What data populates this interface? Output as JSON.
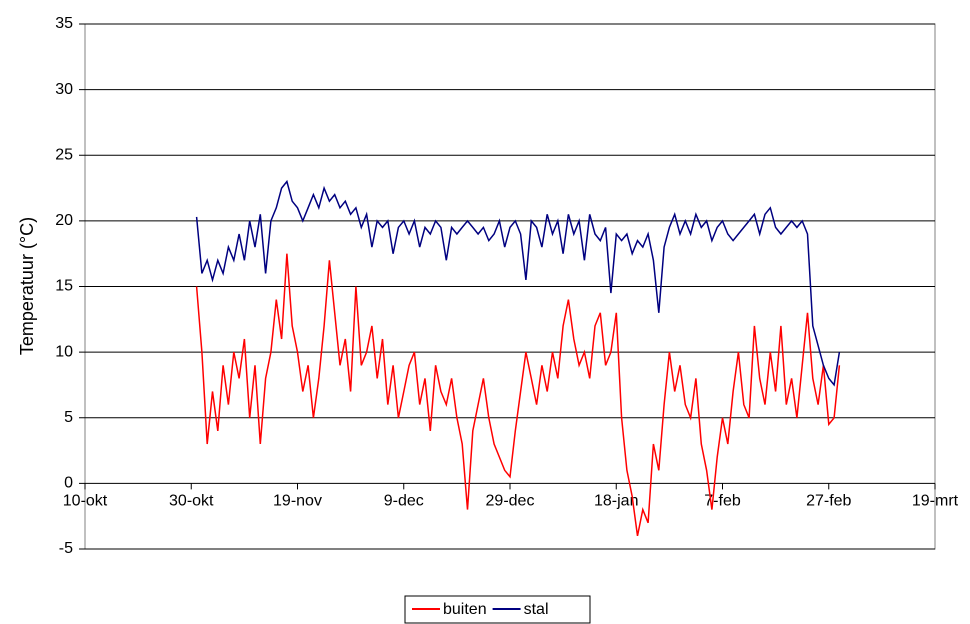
{
  "chart_data": {
    "type": "line",
    "y_label": "Temperatuur (°C)",
    "xlim": [
      0,
      160
    ],
    "xticks": [
      {
        "value": 0,
        "label": "10-okt"
      },
      {
        "value": 20,
        "label": "30-okt"
      },
      {
        "value": 40,
        "label": "19-nov"
      },
      {
        "value": 60,
        "label": "9-dec"
      },
      {
        "value": 80,
        "label": "29-dec"
      },
      {
        "value": 100,
        "label": "18-jan"
      },
      {
        "value": 120,
        "label": "7-feb"
      },
      {
        "value": 140,
        "label": "27-feb"
      },
      {
        "value": 160,
        "label": "19-mrt"
      }
    ],
    "ylim": [
      -5,
      35
    ],
    "yticks": [
      -5,
      0,
      5,
      10,
      15,
      20,
      25,
      30,
      35
    ],
    "grid": true,
    "legend": "bottom",
    "x": [
      21,
      22,
      23,
      24,
      25,
      26,
      27,
      28,
      29,
      30,
      31,
      32,
      33,
      34,
      35,
      36,
      37,
      38,
      39,
      40,
      41,
      42,
      43,
      44,
      45,
      46,
      47,
      48,
      49,
      50,
      51,
      52,
      53,
      54,
      55,
      56,
      57,
      58,
      59,
      60,
      61,
      62,
      63,
      64,
      65,
      66,
      67,
      68,
      69,
      70,
      71,
      72,
      73,
      74,
      75,
      76,
      77,
      78,
      79,
      80,
      81,
      82,
      83,
      84,
      85,
      86,
      87,
      88,
      89,
      90,
      91,
      92,
      93,
      94,
      95,
      96,
      97,
      98,
      99,
      100,
      101,
      102,
      103,
      104,
      105,
      106,
      107,
      108,
      109,
      110,
      111,
      112,
      113,
      114,
      115,
      116,
      117,
      118,
      119,
      120,
      121,
      122,
      123,
      124,
      125,
      126,
      127,
      128,
      129,
      130,
      131,
      132,
      133,
      134,
      135,
      136,
      137,
      138,
      139,
      140,
      141,
      142
    ],
    "series": [
      {
        "name": "buiten",
        "color": "#ff0000",
        "values": [
          15,
          10,
          3,
          7,
          4,
          9,
          6,
          10,
          8,
          11,
          5,
          9,
          3,
          8,
          10,
          14,
          11,
          17.5,
          12,
          10,
          7,
          9,
          5,
          8,
          12,
          17,
          13,
          9,
          11,
          7,
          15,
          9,
          10,
          12,
          8,
          11,
          6,
          9,
          5,
          7,
          9,
          10,
          6,
          8,
          4,
          9,
          7,
          6,
          8,
          5,
          3,
          -2,
          4,
          6,
          8,
          5,
          3,
          2,
          1,
          0.5,
          4,
          7,
          10,
          8,
          6,
          9,
          7,
          10,
          8,
          12,
          14,
          11,
          9,
          10,
          8,
          12,
          13,
          9,
          10,
          13,
          5,
          1,
          -1,
          -4,
          -2,
          -3,
          3,
          1,
          6,
          10,
          7,
          9,
          6,
          5,
          8,
          3,
          1,
          -2,
          2,
          5,
          3,
          7,
          10,
          6,
          5,
          12,
          8,
          6,
          10,
          7,
          12,
          6,
          8,
          5,
          9,
          13,
          8,
          6,
          9,
          4.5,
          5,
          9
        ]
      },
      {
        "name": "stal",
        "color": "#000080",
        "values": [
          20.3,
          16,
          17,
          15.5,
          17,
          16,
          18,
          17,
          19,
          17,
          20,
          18,
          20.5,
          16,
          20,
          21,
          22.5,
          23,
          21.5,
          21,
          20,
          21,
          22,
          21,
          22.5,
          21.5,
          22,
          21,
          21.5,
          20.5,
          21,
          19.5,
          20.5,
          18,
          20,
          19.5,
          20,
          17.5,
          19.5,
          20,
          19,
          20,
          18,
          19.5,
          19,
          20,
          19.5,
          17,
          19.5,
          19,
          19.5,
          20,
          19.5,
          19,
          19.5,
          18.5,
          19,
          20,
          18,
          19.5,
          20,
          19,
          15.5,
          20,
          19.5,
          18,
          20.5,
          19,
          20,
          17.5,
          20.5,
          19,
          20,
          17,
          20.5,
          19,
          18.5,
          19.5,
          14.5,
          19,
          18.5,
          19,
          17.5,
          18.5,
          18,
          19,
          17,
          13,
          18,
          19.5,
          20.5,
          19,
          20,
          19,
          20.5,
          19.5,
          20,
          18.5,
          19.5,
          20,
          19,
          18.5,
          19,
          19.5,
          20,
          20.5,
          19,
          20.5,
          21,
          19.5,
          19,
          19.5,
          20,
          19.5,
          20,
          19,
          12,
          10.5,
          9,
          8,
          7.5,
          10
        ]
      }
    ]
  }
}
